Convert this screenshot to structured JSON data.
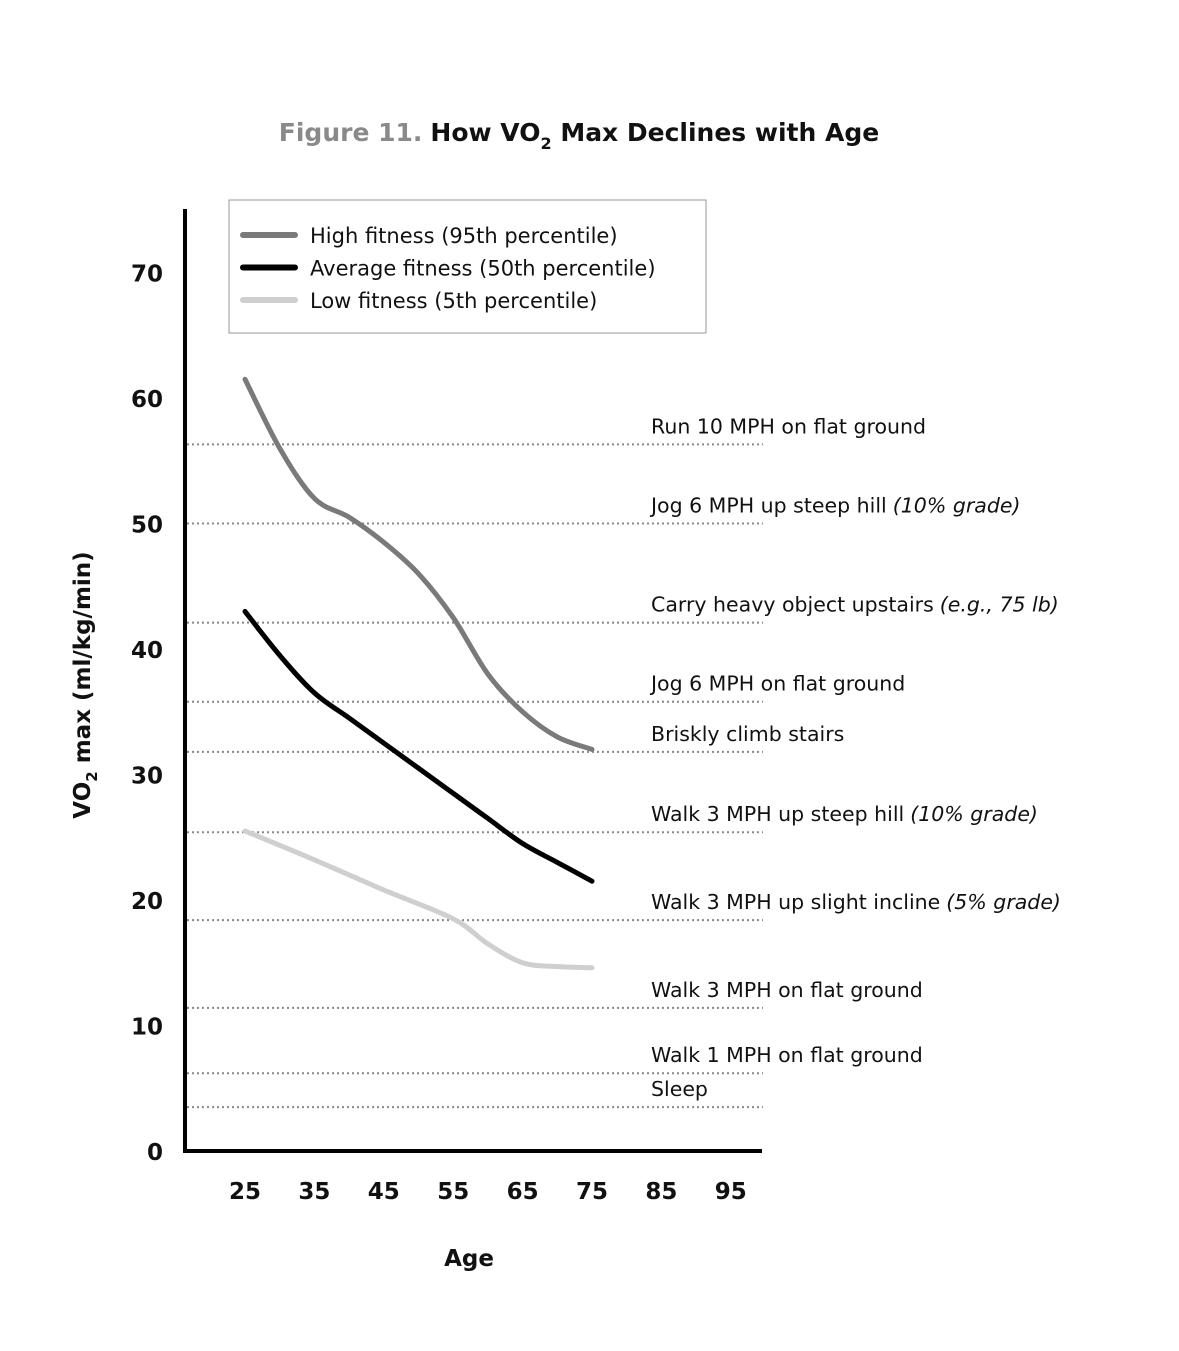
{
  "chart_data": {
    "type": "line",
    "title": {
      "label": "Figure 11.",
      "main_prefix": "How VO",
      "main_sub": "2",
      "main_suffix": " Max Declines with Age"
    },
    "xlabel": "Age",
    "ylabel": {
      "prefix": "VO",
      "sub": "2",
      "suffix": " max (ml/kg/min)"
    },
    "x_ticks": [
      25,
      35,
      45,
      55,
      65,
      75,
      85,
      95
    ],
    "y_ticks": [
      0,
      10,
      20,
      30,
      40,
      50,
      60,
      70
    ],
    "xlim": [
      17,
      100
    ],
    "ylim": [
      0,
      75
    ],
    "grid": false,
    "legend_position": "top-left",
    "series": [
      {
        "name": "High fitness (95th percentile)",
        "color": "#7a7a7a",
        "points": [
          [
            25,
            61.5
          ],
          [
            30,
            56
          ],
          [
            35,
            52
          ],
          [
            40,
            50.5
          ],
          [
            45,
            48.5
          ],
          [
            50,
            46
          ],
          [
            55,
            42.5
          ],
          [
            60,
            38
          ],
          [
            65,
            35
          ],
          [
            70,
            33
          ],
          [
            75,
            32
          ]
        ]
      },
      {
        "name": "Average fitness (50th percentile)",
        "color": "#000000",
        "points": [
          [
            25,
            43
          ],
          [
            30,
            39.5
          ],
          [
            35,
            36.5
          ],
          [
            40,
            34.5
          ],
          [
            45,
            32.5
          ],
          [
            50,
            30.5
          ],
          [
            55,
            28.5
          ],
          [
            60,
            26.5
          ],
          [
            65,
            24.5
          ],
          [
            70,
            23
          ],
          [
            75,
            21.5
          ]
        ]
      },
      {
        "name": "Low fitness (5th percentile)",
        "color": "#cfcfcf",
        "points": [
          [
            25,
            25.5
          ],
          [
            35,
            23.2
          ],
          [
            45,
            20.8
          ],
          [
            55,
            18.5
          ],
          [
            60,
            16.5
          ],
          [
            65,
            15
          ],
          [
            70,
            14.7
          ],
          [
            75,
            14.6
          ]
        ]
      }
    ],
    "reference_lines": [
      {
        "y": 56.3,
        "label": "Run 10 MPH on flat ground",
        "note": ""
      },
      {
        "y": 50.0,
        "label": "Jog 6 MPH up steep hill",
        "note": "(10% grade)"
      },
      {
        "y": 42.1,
        "label": "Carry heavy object upstairs",
        "note": "(e.g., 75 lb)"
      },
      {
        "y": 35.8,
        "label": "Jog 6 MPH on flat ground",
        "note": ""
      },
      {
        "y": 31.8,
        "label": "Briskly climb stairs",
        "note": ""
      },
      {
        "y": 25.4,
        "label": "Walk 3 MPH up steep hill",
        "note": "(10% grade)"
      },
      {
        "y": 18.4,
        "label": "Walk 3 MPH up slight incline",
        "note": "(5% grade)"
      },
      {
        "y": 11.4,
        "label": "Walk 3 MPH on flat ground",
        "note": ""
      },
      {
        "y": 6.2,
        "label": "Walk 1 MPH on flat ground",
        "note": ""
      },
      {
        "y": 3.5,
        "label": "Sleep",
        "note": ""
      }
    ]
  }
}
